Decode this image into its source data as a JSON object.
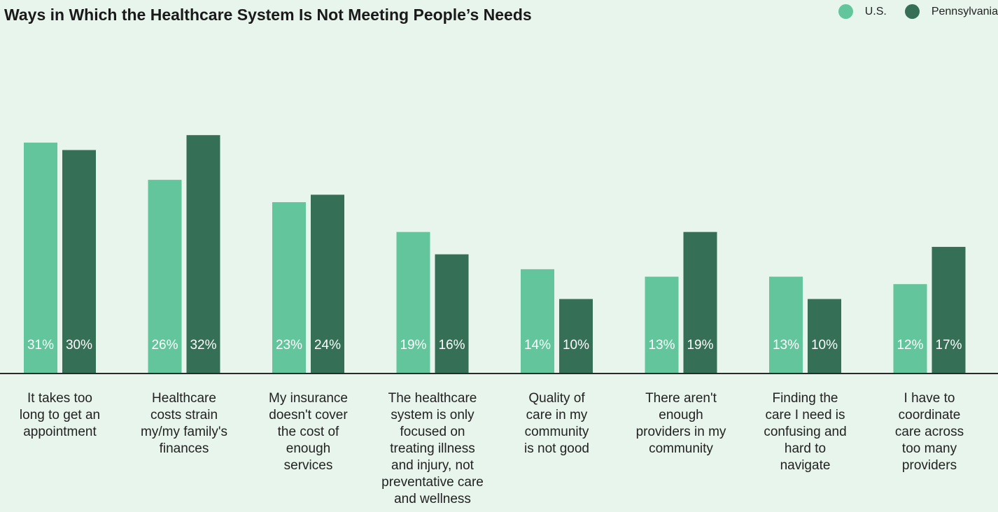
{
  "title": "Ways in Which the Healthcare System Is Not Meeting People’s Needs",
  "legend": [
    {
      "label": "U.S.",
      "color": "#63c59b"
    },
    {
      "label": "Pennsylvania",
      "color": "#356f55"
    }
  ],
  "chart_data": {
    "type": "bar",
    "title": "Ways in Which the Healthcare System Is Not Meeting People’s Needs",
    "legend_position": "top-right",
    "grid": false,
    "categories": [
      [
        "It takes too",
        "long to get an",
        "appointment"
      ],
      [
        "Healthcare",
        "costs strain",
        "my/my family's",
        "finances"
      ],
      [
        "My insurance",
        "doesn't cover",
        "the cost of",
        "enough",
        "services"
      ],
      [
        "The healthcare",
        "system is only",
        "focused on",
        "treating illness",
        "and injury, not",
        "preventative care",
        "and wellness"
      ],
      [
        "Quality of",
        "care in my",
        "community",
        "is not good"
      ],
      [
        "There aren't",
        "enough",
        "providers in my",
        "community"
      ],
      [
        "Finding the",
        "care I need is",
        "confusing and",
        "hard to",
        "navigate"
      ],
      [
        "I have to",
        "coordinate",
        "care across",
        "too many",
        "providers"
      ]
    ],
    "series": [
      {
        "name": "U.S.",
        "color": "#63c59b",
        "values": [
          31,
          26,
          23,
          19,
          14,
          13,
          13,
          12
        ]
      },
      {
        "name": "Pennsylvania",
        "color": "#356f55",
        "values": [
          30,
          32,
          24,
          16,
          10,
          19,
          10,
          17
        ]
      }
    ],
    "value_suffix": "%"
  }
}
